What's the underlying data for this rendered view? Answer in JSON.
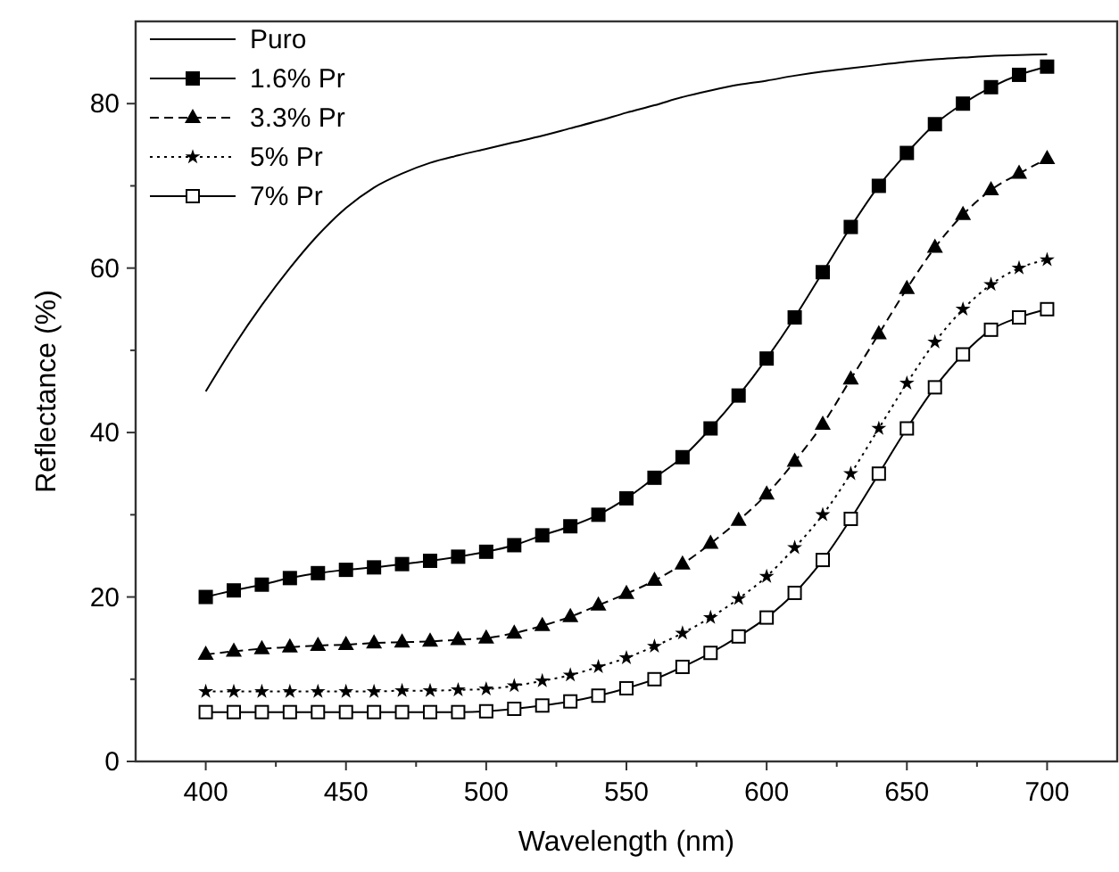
{
  "chart_data": {
    "type": "line",
    "xlabel": "Wavelength (nm)",
    "ylabel": "Reflectance (%)",
    "x": [
      400,
      410,
      420,
      430,
      440,
      450,
      460,
      470,
      480,
      490,
      500,
      510,
      520,
      530,
      540,
      550,
      560,
      570,
      580,
      590,
      600,
      610,
      620,
      630,
      640,
      650,
      660,
      670,
      680,
      690,
      700
    ],
    "series": [
      {
        "name": "Puro",
        "color": "#000000",
        "marker": "none",
        "line_style": "solid",
        "values": [
          45,
          50.5,
          55.5,
          60,
          64,
          67.3,
          69.8,
          71.5,
          72.8,
          73.7,
          74.5,
          75.3,
          76.1,
          77,
          77.9,
          78.9,
          79.8,
          80.8,
          81.6,
          82.3,
          82.8,
          83.4,
          83.9,
          84.3,
          84.7,
          85.1,
          85.4,
          85.6,
          85.8,
          85.9,
          86
        ]
      },
      {
        "name": "1.6% Pr",
        "color": "#000000",
        "marker": "square",
        "line_style": "solid",
        "values": [
          20,
          20.8,
          21.5,
          22.3,
          22.9,
          23.3,
          23.6,
          24,
          24.4,
          24.9,
          25.5,
          26.3,
          27.5,
          28.6,
          30,
          32,
          34.5,
          37,
          40.5,
          44.5,
          49,
          54,
          59.5,
          65,
          70,
          74,
          77.5,
          80,
          82,
          83.5,
          84.5
        ]
      },
      {
        "name": "3.3% Pr",
        "color": "#000000",
        "marker": "triangle",
        "line_style": "dashed",
        "values": [
          13,
          13.4,
          13.7,
          13.9,
          14.1,
          14.2,
          14.4,
          14.5,
          14.6,
          14.8,
          15,
          15.6,
          16.5,
          17.6,
          19,
          20.4,
          22,
          24,
          26.5,
          29.3,
          32.5,
          36.5,
          41,
          46.5,
          52,
          57.5,
          62.5,
          66.5,
          69.5,
          71.5,
          73.3
        ]
      },
      {
        "name": "5% Pr",
        "color": "#000000",
        "marker": "star",
        "line_style": "dotted",
        "values": [
          8.5,
          8.5,
          8.5,
          8.5,
          8.5,
          8.5,
          8.5,
          8.6,
          8.6,
          8.7,
          8.8,
          9.2,
          9.8,
          10.5,
          11.5,
          12.6,
          14,
          15.6,
          17.5,
          19.8,
          22.5,
          26,
          30,
          35,
          40.5,
          46,
          51,
          55,
          58,
          60,
          61
        ]
      },
      {
        "name": "7% Pr",
        "color": "#000000",
        "marker": "square-open",
        "line_style": "solid",
        "values": [
          6,
          6,
          6,
          6,
          6,
          6,
          6,
          6,
          6,
          6,
          6.1,
          6.4,
          6.8,
          7.3,
          8,
          8.9,
          10,
          11.5,
          13.2,
          15.2,
          17.5,
          20.5,
          24.5,
          29.5,
          35,
          40.5,
          45.5,
          49.5,
          52.5,
          54,
          55
        ]
      }
    ],
    "xlim": [
      375,
      725
    ],
    "ylim": [
      0,
      90
    ],
    "xticks": [
      400,
      {
        "value": 425,
        "label": null
      },
      450,
      {
        "value": 475,
        "label": null
      },
      500,
      {
        "value": 525,
        "label": null
      },
      550,
      {
        "value": 575,
        "label": null
      },
      600,
      {
        "value": 625,
        "label": null
      },
      650,
      {
        "value": 675,
        "label": null
      },
      700
    ],
    "yticks": [
      0,
      {
        "value": 10,
        "label": null
      },
      20,
      {
        "value": 30,
        "label": null
      },
      40,
      {
        "value": 50,
        "label": null
      },
      60,
      {
        "value": 70,
        "label": null
      },
      80
    ],
    "legend": "top left",
    "grid": false
  }
}
